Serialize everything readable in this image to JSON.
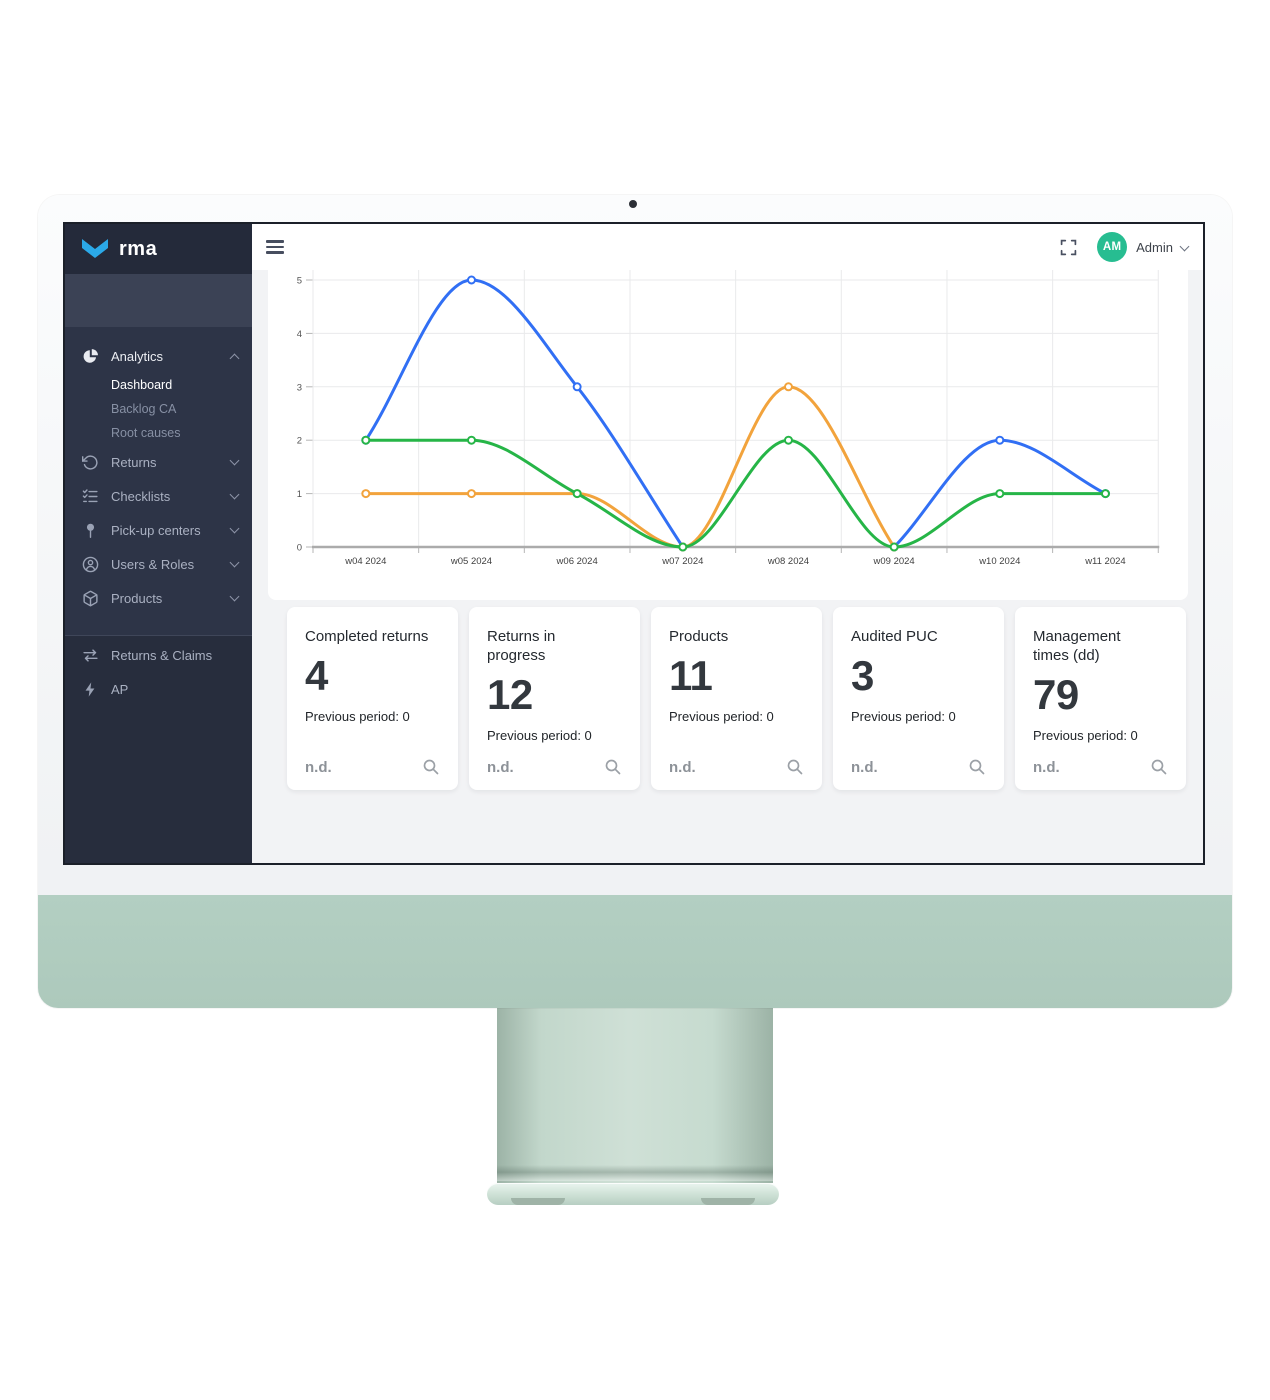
{
  "colors": {
    "logo_blue": "#2ba9e8",
    "avatar_green": "#27bd91",
    "chin_green": "#b3cfc2",
    "sidebar_dark": "#2d3447",
    "series_blue": "#316ff4",
    "series_orange": "#f2a33c",
    "series_green": "#26b547"
  },
  "logo": {
    "text": "rma"
  },
  "sidebar": {
    "main": [
      {
        "label": "Analytics",
        "icon": "pie-chart-icon",
        "expanded": true,
        "children": [
          {
            "label": "Dashboard",
            "active": true
          },
          {
            "label": "Backlog CA"
          },
          {
            "label": "Root causes"
          }
        ]
      },
      {
        "label": "Returns",
        "icon": "rotate-ccw-icon"
      },
      {
        "label": "Checklists",
        "icon": "checklist-icon"
      },
      {
        "label": "Pick-up centers",
        "icon": "map-pin-icon"
      },
      {
        "label": "Users & Roles",
        "icon": "user-circle-icon"
      },
      {
        "label": "Products",
        "icon": "box-icon"
      }
    ],
    "secondary": [
      {
        "label": "Returns & Claims",
        "icon": "swap-arrows-icon"
      },
      {
        "label": "AP",
        "icon": "lightning-icon"
      }
    ]
  },
  "topbar": {
    "menu_icon": "hamburger-icon",
    "fullscreen_icon": "fullscreen-icon",
    "admin_initials": "AM",
    "admin_label": "Admin"
  },
  "chart_data": {
    "type": "line",
    "categories": [
      "w04 2024",
      "w05 2024",
      "w06 2024",
      "w07 2024",
      "w08 2024",
      "w09 2024",
      "w10 2024",
      "w11 2024"
    ],
    "y_ticks": [
      0,
      1,
      2,
      3,
      4,
      5
    ],
    "ylim": [
      0,
      5
    ],
    "grid": true,
    "legend_visible": false,
    "point_style": "circle-outline",
    "interpolation": "monotone",
    "series": [
      {
        "name": "series-blue",
        "color": "#316ff4",
        "values": [
          2,
          5,
          3,
          0,
          null,
          0,
          2,
          1
        ]
      },
      {
        "name": "series-orange",
        "color": "#f2a33c",
        "values": [
          1,
          1,
          1,
          0,
          3,
          0,
          null,
          null
        ]
      },
      {
        "name": "series-green",
        "color": "#26b547",
        "values": [
          2,
          2,
          1,
          0,
          2,
          0,
          1,
          1
        ]
      }
    ]
  },
  "cards": [
    {
      "title": "Completed returns",
      "value": "4",
      "previous": "Previous period: 0",
      "footer": "n.d."
    },
    {
      "title": "Returns in progress",
      "value": "12",
      "previous": "Previous period: 0",
      "footer": "n.d."
    },
    {
      "title": "Products",
      "value": "11",
      "previous": "Previous period: 0",
      "footer": "n.d."
    },
    {
      "title": "Audited PUC",
      "value": "3",
      "previous": "Previous period: 0",
      "footer": "n.d."
    },
    {
      "title": "Management times (dd)",
      "value": "79",
      "previous": "Previous period: 0",
      "footer": "n.d."
    }
  ]
}
